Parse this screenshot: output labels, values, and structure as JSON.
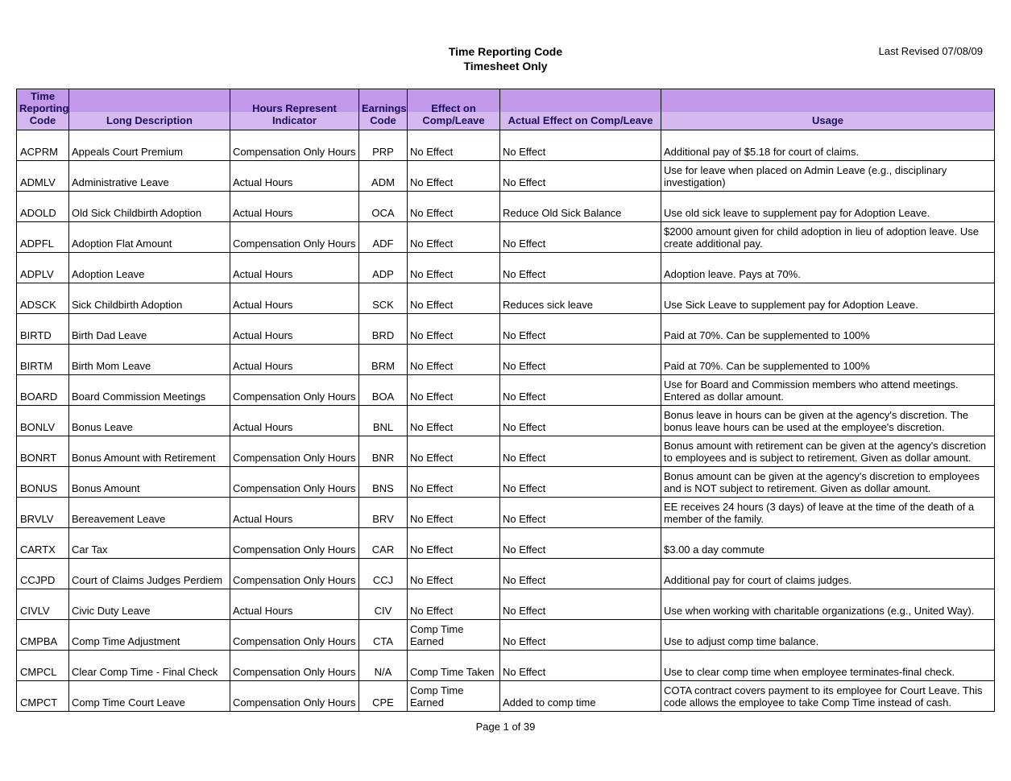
{
  "page": {
    "title_line1": "Time Reporting Code",
    "title_line2": "Timesheet Only",
    "last_revised": "Last Revised 07/08/09",
    "footer": "Page 1 of 39"
  },
  "colors": {
    "header_row1_bg": "#c299e8",
    "header_row2_bg": "#d6b8f0",
    "header_text": "#1a0f5c",
    "border": "#000000",
    "background": "#ffffff"
  },
  "table": {
    "columns": [
      "Time Reporting Code",
      "Long Description",
      "Hours Represent Indicator",
      "Earnings Code",
      "Effect on Comp/Leave",
      "Actual Effect on Comp/Leave",
      "Usage"
    ],
    "header_split": {
      "col0": {
        "top": "Time",
        "mid": "Reporting",
        "bot": "Code"
      },
      "col1": {
        "top": "",
        "bot": "Long Description"
      },
      "col2": {
        "top": "",
        "bot": "Hours Represent Indicator"
      },
      "col3": {
        "top": "Earnings",
        "bot": "Code"
      },
      "col4": {
        "top": "Effect on",
        "bot": "Comp/Leave"
      },
      "col5": {
        "top": "",
        "bot": "Actual Effect on Comp/Leave"
      },
      "col6": {
        "top": "",
        "bot": "Usage"
      }
    },
    "rows": [
      {
        "code": "ACPRM",
        "long": "Appeals Court Premium",
        "hours": "Compensation Only Hours",
        "earn": "PRP",
        "effect": "No Effect",
        "actual": "No Effect",
        "usage": "Additional pay of $5.18 for court of claims."
      },
      {
        "code": "ADMLV",
        "long": "Administrative Leave",
        "hours": "Actual Hours",
        "earn": "ADM",
        "effect": "No Effect",
        "actual": "No Effect",
        "usage": "Use for leave when placed on Admin Leave (e.g., disciplinary investigation)"
      },
      {
        "code": "ADOLD",
        "long": "Old Sick Childbirth Adoption",
        "hours": "Actual Hours",
        "earn": "OCA",
        "effect": "No Effect",
        "actual": "Reduce Old Sick Balance",
        "usage": "Use old sick leave to supplement pay for Adoption Leave."
      },
      {
        "code": "ADPFL",
        "long": "Adoption Flat Amount",
        "hours": "Compensation Only Hours",
        "earn": "ADF",
        "effect": "No Effect",
        "actual": "No Effect",
        "usage": "$2000 amount given for child adoption in lieu of adoption leave. Use create additional pay."
      },
      {
        "code": "ADPLV",
        "long": "Adoption Leave",
        "hours": "Actual Hours",
        "earn": "ADP",
        "effect": "No Effect",
        "actual": "No Effect",
        "usage": "Adoption leave.  Pays at 70%."
      },
      {
        "code": "ADSCK",
        "long": "Sick Childbirth Adoption",
        "hours": "Actual Hours",
        "earn": "SCK",
        "effect": "No Effect",
        "actual": "Reduces sick leave",
        "usage": "Use Sick Leave to supplement pay for Adoption Leave."
      },
      {
        "code": "BIRTD",
        "long": "Birth Dad Leave",
        "hours": "Actual Hours",
        "earn": "BRD",
        "effect": "No Effect",
        "actual": "No Effect",
        "usage": "Paid at 70%.  Can be supplemented to 100%"
      },
      {
        "code": "BIRTM",
        "long": "Birth Mom Leave",
        "hours": "Actual Hours",
        "earn": "BRM",
        "effect": "No Effect",
        "actual": "No Effect",
        "usage": "Paid at 70%.  Can be supplemented to 100%"
      },
      {
        "code": "BOARD",
        "long": "Board Commission Meetings",
        "hours": "Compensation Only Hours",
        "earn": "BOA",
        "effect": "No Effect",
        "actual": "No Effect",
        "usage": "Use for Board and Commission members who attend meetings. Entered as dollar amount."
      },
      {
        "code": "BONLV",
        "long": "Bonus Leave",
        "hours": "Actual Hours",
        "earn": "BNL",
        "effect": "No Effect",
        "actual": "No Effect",
        "usage": "Bonus leave in hours can be given at the agency's discretion.  The bonus leave hours can be used at the employee's discretion."
      },
      {
        "code": "BONRT",
        "long": "Bonus Amount with Retirement",
        "hours": "Compensation Only Hours",
        "earn": "BNR",
        "effect": "No Effect",
        "actual": "No Effect",
        "usage": "Bonus amount with retirement can be given at the agency's discretion to employees and is subject to retirement.  Given as dollar amount."
      },
      {
        "code": "BONUS",
        "long": "Bonus Amount",
        "hours": "Compensation Only Hours",
        "earn": "BNS",
        "effect": "No Effect",
        "actual": "No Effect",
        "usage": "Bonus amount can be given at the agency's discretion to employees and is NOT subject to retirement.  Given as dollar amount."
      },
      {
        "code": "BRVLV",
        "long": "Bereavement Leave",
        "hours": "Actual Hours",
        "earn": "BRV",
        "effect": "No Effect",
        "actual": "No Effect",
        "usage": "EE receives 24 hours (3 days) of leave at the time of the death of a member of the family."
      },
      {
        "code": "CARTX",
        "long": "Car Tax",
        "hours": "Compensation Only Hours",
        "earn": "CAR",
        "effect": "No Effect",
        "actual": "No Effect",
        "usage": "$3.00 a day commute"
      },
      {
        "code": "CCJPD",
        "long": "Court of Claims Judges Perdiem",
        "hours": "Compensation Only Hours",
        "earn": "CCJ",
        "effect": "No Effect",
        "actual": "No Effect",
        "usage": "Additional pay for court of claims judges."
      },
      {
        "code": "CIVLV",
        "long": "Civic Duty Leave",
        "hours": "Actual Hours",
        "earn": "CIV",
        "effect": "No Effect",
        "actual": "No Effect",
        "usage": "Use when working with charitable organizations (e.g., United Way)."
      },
      {
        "code": "CMPBA",
        "long": "Comp Time Adjustment",
        "hours": "Compensation Only Hours",
        "earn": "CTA",
        "effect": "Comp Time Earned",
        "actual": "No Effect",
        "usage": "Use to adjust comp time balance."
      },
      {
        "code": "CMPCL",
        "long": "Clear Comp Time - Final Check",
        "hours": "Compensation Only Hours",
        "earn": "N/A",
        "effect": "Comp Time Taken",
        "actual": "No Effect",
        "usage": "Use to clear comp time when employee terminates-final check."
      },
      {
        "code": "CMPCT",
        "long": "Comp Time Court Leave",
        "hours": "Compensation Only Hours",
        "earn": "CPE",
        "effect": "Comp Time Earned",
        "actual": "Added to comp time",
        "usage": "COTA contract covers payment to its employee for Court Leave. This code allows the employee to take Comp Time instead of cash."
      }
    ]
  }
}
